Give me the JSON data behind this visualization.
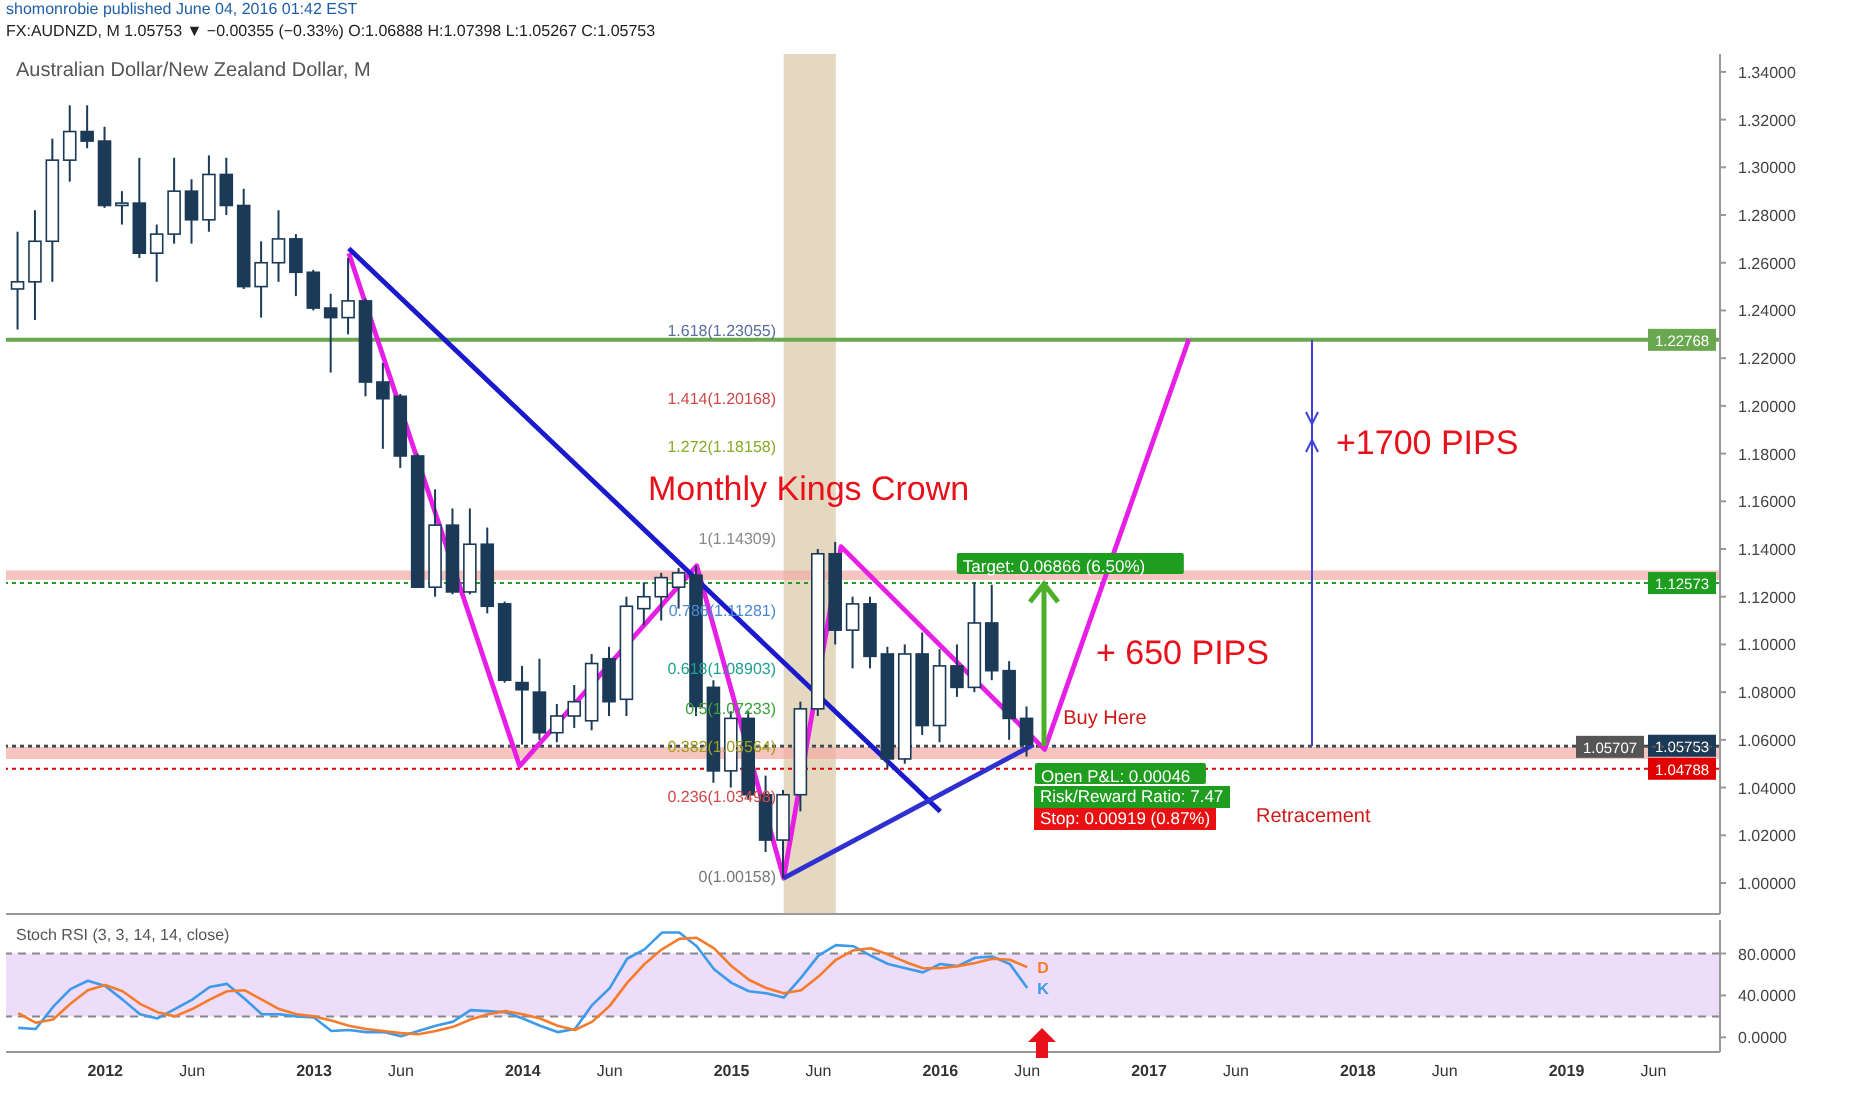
{
  "chart_data": [
    {
      "type": "candlestick",
      "title": "Australian Dollar/New Zealand Dollar, M",
      "subtitle": "FX:AUDNZD, M 1.05753 ▼ −0.00355 (−0.33%) O:1.06888 H:1.07398 L:1.05267 C:1.05753",
      "x": [
        "2011-08",
        "2011-09",
        "2011-10",
        "2011-11",
        "2011-12",
        "2012-01",
        "2012-02",
        "2012-03",
        "2012-04",
        "2012-05",
        "2012-06",
        "2012-07",
        "2012-08",
        "2012-09",
        "2012-10",
        "2012-11",
        "2012-12",
        "2013-01",
        "2013-02",
        "2013-03",
        "2013-04",
        "2013-05",
        "2013-06",
        "2013-07",
        "2013-08",
        "2013-09",
        "2013-10",
        "2013-11",
        "2013-12",
        "2014-01",
        "2014-02",
        "2014-03",
        "2014-04",
        "2014-05",
        "2014-06",
        "2014-07",
        "2014-08",
        "2014-09",
        "2014-10",
        "2014-11",
        "2014-12",
        "2015-01",
        "2015-02",
        "2015-03",
        "2015-04",
        "2015-05",
        "2015-06",
        "2015-07",
        "2015-08",
        "2015-09",
        "2015-10",
        "2015-11",
        "2015-12",
        "2016-01",
        "2016-02",
        "2016-03",
        "2016-04",
        "2016-05",
        "2016-06"
      ],
      "ohlc": [
        [
          1.249,
          1.273,
          1.232,
          1.252
        ],
        [
          1.252,
          1.282,
          1.236,
          1.269
        ],
        [
          1.269,
          1.312,
          1.252,
          1.303
        ],
        [
          1.303,
          1.326,
          1.294,
          1.315
        ],
        [
          1.315,
          1.326,
          1.308,
          1.311
        ],
        [
          1.311,
          1.317,
          1.283,
          1.284
        ],
        [
          1.284,
          1.29,
          1.276,
          1.285
        ],
        [
          1.285,
          1.304,
          1.262,
          1.264
        ],
        [
          1.264,
          1.276,
          1.252,
          1.272
        ],
        [
          1.272,
          1.304,
          1.268,
          1.29
        ],
        [
          1.29,
          1.295,
          1.268,
          1.278
        ],
        [
          1.278,
          1.305,
          1.273,
          1.297
        ],
        [
          1.297,
          1.304,
          1.28,
          1.284
        ],
        [
          1.284,
          1.291,
          1.249,
          1.25
        ],
        [
          1.25,
          1.269,
          1.237,
          1.26
        ],
        [
          1.26,
          1.282,
          1.252,
          1.27
        ],
        [
          1.27,
          1.272,
          1.246,
          1.256
        ],
        [
          1.256,
          1.257,
          1.24,
          1.241
        ],
        [
          1.241,
          1.247,
          1.214,
          1.237
        ],
        [
          1.237,
          1.262,
          1.23,
          1.244
        ],
        [
          1.244,
          1.245,
          1.204,
          1.21
        ],
        [
          1.21,
          1.218,
          1.182,
          1.203
        ],
        [
          1.204,
          1.205,
          1.174,
          1.179
        ],
        [
          1.179,
          1.18,
          1.124,
          1.124
        ],
        [
          1.124,
          1.165,
          1.12,
          1.15
        ],
        [
          1.15,
          1.157,
          1.121,
          1.122
        ],
        [
          1.122,
          1.157,
          1.121,
          1.142
        ],
        [
          1.142,
          1.149,
          1.113,
          1.116
        ],
        [
          1.117,
          1.118,
          1.084,
          1.085
        ],
        [
          1.084,
          1.091,
          1.058,
          1.081
        ],
        [
          1.08,
          1.094,
          1.06,
          1.063
        ],
        [
          1.063,
          1.075,
          1.059,
          1.07
        ],
        [
          1.07,
          1.083,
          1.065,
          1.076
        ],
        [
          1.068,
          1.096,
          1.064,
          1.092
        ],
        [
          1.094,
          1.099,
          1.07,
          1.076
        ],
        [
          1.077,
          1.12,
          1.07,
          1.116
        ],
        [
          1.115,
          1.126,
          1.108,
          1.12
        ],
        [
          1.12,
          1.13,
          1.11,
          1.128
        ],
        [
          1.124,
          1.132,
          1.115,
          1.13
        ],
        [
          1.129,
          1.133,
          1.07,
          1.074
        ],
        [
          1.082,
          1.085,
          1.042,
          1.047
        ],
        [
          1.047,
          1.072,
          1.04,
          1.069
        ],
        [
          1.069,
          1.072,
          1.035,
          1.037
        ],
        [
          1.037,
          1.045,
          1.013,
          1.018
        ],
        [
          1.018,
          1.039,
          1.002,
          1.037
        ],
        [
          1.037,
          1.076,
          1.03,
          1.073
        ],
        [
          1.073,
          1.14,
          1.07,
          1.138
        ],
        [
          1.138,
          1.143,
          1.1,
          1.106
        ],
        [
          1.106,
          1.12,
          1.09,
          1.117
        ],
        [
          1.117,
          1.12,
          1.09,
          1.095
        ],
        [
          1.096,
          1.099,
          1.048,
          1.052
        ],
        [
          1.052,
          1.1,
          1.05,
          1.096
        ],
        [
          1.096,
          1.105,
          1.062,
          1.066
        ],
        [
          1.066,
          1.098,
          1.059,
          1.091
        ],
        [
          1.091,
          1.1,
          1.078,
          1.082
        ],
        [
          1.082,
          1.126,
          1.08,
          1.109
        ],
        [
          1.109,
          1.125,
          1.085,
          1.089
        ],
        [
          1.089,
          1.093,
          1.06,
          1.069
        ],
        [
          1.069,
          1.074,
          1.053,
          1.058
        ]
      ],
      "colors": [
        "#ffffff",
        "#ffffff",
        "#ffffff",
        "#ffffff",
        "#1b3a57",
        "#1b3a57",
        "#ffffff",
        "#1b3a57",
        "#ffffff",
        "#ffffff",
        "#1b3a57",
        "#ffffff",
        "#1b3a57",
        "#1b3a57",
        "#ffffff",
        "#ffffff",
        "#1b3a57",
        "#1b3a57",
        "#1b3a57",
        "#ffffff",
        "#1b3a57",
        "#1b3a57",
        "#1b3a57",
        "#1b3a57",
        "#ffffff",
        "#1b3a57",
        "#ffffff",
        "#1b3a57",
        "#1b3a57",
        "#1b3a57",
        "#1b3a57",
        "#ffffff",
        "#ffffff",
        "#ffffff",
        "#1b3a57",
        "#ffffff",
        "#ffffff",
        "#ffffff",
        "#ffffff",
        "#1b3a57",
        "#1b3a57",
        "#ffffff",
        "#1b3a57",
        "#1b3a57",
        "#ffffff",
        "#ffffff",
        "#ffffff",
        "#1b3a57",
        "#ffffff",
        "#1b3a57",
        "#1b3a57",
        "#ffffff",
        "#1b3a57",
        "#ffffff",
        "#1b3a57",
        "#ffffff",
        "#1b3a57",
        "#1b3a57",
        "#1b3a57"
      ],
      "series": [
        {
          "type": "line",
          "color": "#e61ee6",
          "x": [
            "2013-03",
            "2013-12-26",
            "2014-11",
            "2015-04",
            "2015-07-10",
            "2016-07",
            "2017-03-10"
          ],
          "values": [
            1.264,
            1.049,
            1.133,
            1.002,
            1.141,
            1.056,
            1.228
          ]
        },
        {
          "type": "line",
          "color": "#1a1acc",
          "x": [
            "2013-03",
            "2016-01"
          ],
          "values": [
            1.266,
            1.03
          ]
        },
        {
          "type": "line",
          "color": "#3030d0",
          "x": [
            "2015-04",
            "2016-06-12"
          ],
          "values": [
            1.002,
            1.058
          ]
        }
      ],
      "marker": "none",
      "xlim": [
        "2011-07-10",
        "2019-09-26"
      ],
      "ylim": [
        0.987,
        1.3475
      ],
      "yticks": [
        {
          "value": 1.0,
          "label": "1.00000"
        },
        {
          "value": 1.02,
          "label": "1.02000"
        },
        {
          "value": 1.04,
          "label": "1.04000"
        },
        {
          "value": 1.06,
          "label": "1.06000"
        },
        {
          "value": 1.08,
          "label": "1.08000"
        },
        {
          "value": 1.1,
          "label": "1.10000"
        },
        {
          "value": 1.12,
          "label": "1.12000"
        },
        {
          "value": 1.14,
          "label": "1.14000"
        },
        {
          "value": 1.16,
          "label": "1.16000"
        },
        {
          "value": 1.18,
          "label": "1.18000"
        },
        {
          "value": 1.2,
          "label": "1.20000"
        },
        {
          "value": 1.22,
          "label": "1.22000"
        },
        {
          "value": 1.24,
          "label": "1.24000"
        },
        {
          "value": 1.26,
          "label": "1.26000"
        },
        {
          "value": 1.28,
          "label": "1.28000"
        },
        {
          "value": 1.3,
          "label": "1.30000"
        },
        {
          "value": 1.32,
          "label": "1.32000"
        },
        {
          "value": 1.34,
          "label": "1.34000"
        }
      ],
      "tick_labels": "y",
      "ref_lines": [
        {
          "axis": "y",
          "value": 1.22768,
          "label": "1.22768",
          "color": "#6aa84f",
          "line_style": "solid"
        },
        {
          "axis": "y",
          "value": 1.12573,
          "label": "1.12573",
          "color": "#1e9e1e",
          "line_style": "dotted"
        },
        {
          "axis": "y",
          "value": 1.05753,
          "label": "1.05753",
          "color": "#1b3a57",
          "line_style": "dotted"
        },
        {
          "axis": "y",
          "value": 1.05707,
          "label": "1.05707",
          "color": "#555555",
          "line_style": "dotted"
        },
        {
          "axis": "y",
          "value": 1.04788,
          "label": "1.04788",
          "color": "#e00000",
          "line_style": "dotted"
        }
      ],
      "bands": [
        {
          "axis": "x",
          "from": "2015-04",
          "to": "2015-07",
          "color": "#d9c7a5"
        },
        {
          "axis": "y",
          "from": 1.127,
          "to": 1.131,
          "color": "#f2aca4"
        },
        {
          "axis": "y",
          "from": 1.052,
          "to": 1.057,
          "color": "#f2aca4"
        }
      ],
      "annotations": [
        "shomonrobie published June 04, 2016 01:42 EST",
        "Monthly Kings Crown",
        "+1700 PIPS",
        "+ 650 PIPS",
        "Retracement",
        "Risk/Reward Ratio: 7.47",
        "Stop: 0.00919 (0.87%)",
        "1.618(1.23055)",
        "1.414(1.20168)",
        "1.272(1.18158)",
        "1(1.14309)",
        "0.786(1.11281)",
        "0.618(1.08903)",
        "0.5(1.07233)",
        "0.382(1.05564)",
        "0.236(1.03498)",
        "0(1.00158)",
        {
          "text": "Buy Here",
          "x": "2016-06",
          "y": 1.058
        },
        {
          "text": "Target: 0.06866 (6.50%)",
          "x": "2016-02-10",
          "y": 1.133
        },
        {
          "text": "Open P&L: 0.00046",
          "x": "2016-06-25",
          "y": 1.045
        }
      ]
    },
    {
      "type": "line",
      "title": "Stoch RSI (3, 3, 14, 14, close)",
      "x": [
        "2011-08",
        "2011-09",
        "2011-10",
        "2011-11",
        "2011-12",
        "2012-01",
        "2012-02",
        "2012-03",
        "2012-04",
        "2012-05",
        "2012-06",
        "2012-07",
        "2012-08",
        "2012-09",
        "2012-10",
        "2012-11",
        "2012-12",
        "2013-01",
        "2013-02",
        "2013-03",
        "2013-04",
        "2013-05",
        "2013-06",
        "2013-07",
        "2013-08",
        "2013-09",
        "2013-10",
        "2013-11",
        "2013-12",
        "2014-01",
        "2014-02",
        "2014-03",
        "2014-04",
        "2014-05",
        "2014-06",
        "2014-07",
        "2014-08",
        "2014-09",
        "2014-10",
        "2014-11",
        "2014-12",
        "2015-01",
        "2015-02",
        "2015-03",
        "2015-04",
        "2015-05",
        "2015-06",
        "2015-07",
        "2015-08",
        "2015-09",
        "2015-10",
        "2015-11",
        "2015-12",
        "2016-01",
        "2016-02",
        "2016-03",
        "2016-04",
        "2016-05",
        "2016-06"
      ],
      "series": [
        {
          "name": "K",
          "color": "#3d9be9",
          "values": [
            9,
            8,
            29,
            46,
            54,
            49,
            36,
            22,
            18,
            27,
            36,
            48,
            51,
            37,
            22,
            22,
            20,
            19,
            6,
            7,
            5,
            5,
            1,
            6,
            11,
            15,
            26,
            25,
            24,
            18,
            11,
            5,
            8,
            31,
            47,
            75,
            84,
            100,
            100,
            87,
            65,
            52,
            44,
            42,
            38,
            57,
            78,
            88,
            87,
            78,
            70,
            66,
            62,
            70,
            68,
            76,
            77,
            70,
            47
          ]
        },
        {
          "name": "D",
          "color": "#f57c2c",
          "values": [
            23,
            14,
            17,
            32,
            45,
            50,
            44,
            32,
            24,
            20,
            27,
            36,
            44,
            45,
            36,
            27,
            22,
            20,
            16,
            11,
            8,
            6,
            4,
            3,
            6,
            10,
            17,
            22,
            25,
            22,
            18,
            11,
            7,
            15,
            30,
            52,
            70,
            84,
            94,
            95,
            85,
            68,
            55,
            47,
            42,
            45,
            58,
            74,
            83,
            85,
            79,
            72,
            66,
            66,
            68,
            71,
            75,
            74,
            67
          ]
        }
      ],
      "marker": "none",
      "xlim": [
        "2011-07-10",
        "2019-09-26"
      ],
      "ylim": [
        -14,
        112
      ],
      "xticks": [
        {
          "value": "2012-01",
          "label": "2012"
        },
        {
          "value": "2012-06",
          "label": "Jun"
        },
        {
          "value": "2013-01",
          "label": "2013"
        },
        {
          "value": "2013-06",
          "label": "Jun"
        },
        {
          "value": "2014-01",
          "label": "2014"
        },
        {
          "value": "2014-06",
          "label": "Jun"
        },
        {
          "value": "2015-01",
          "label": "2015"
        },
        {
          "value": "2015-06",
          "label": "Jun"
        },
        {
          "value": "2016-01",
          "label": "2016"
        },
        {
          "value": "2016-06",
          "label": "Jun"
        },
        {
          "value": "2017-01",
          "label": "2017"
        },
        {
          "value": "2017-06",
          "label": "Jun"
        },
        {
          "value": "2018-01",
          "label": "2018"
        },
        {
          "value": "2018-06",
          "label": "Jun"
        },
        {
          "value": "2019-01",
          "label": "2019"
        },
        {
          "value": "2019-06",
          "label": "Jun"
        }
      ],
      "yticks": [
        {
          "value": 0,
          "label": "0.0000"
        },
        {
          "value": 40,
          "label": "40.0000"
        },
        {
          "value": 80,
          "label": "80.0000"
        }
      ],
      "ref_lines": [
        {
          "axis": "y",
          "value": 80,
          "color": "#888888",
          "line_style": "dashed"
        },
        {
          "axis": "y",
          "value": 20,
          "color": "#888888",
          "line_style": "dashed"
        }
      ],
      "bands": [
        {
          "axis": "y",
          "from": 20,
          "to": 80,
          "color": "#e6cff7"
        }
      ]
    }
  ]
}
